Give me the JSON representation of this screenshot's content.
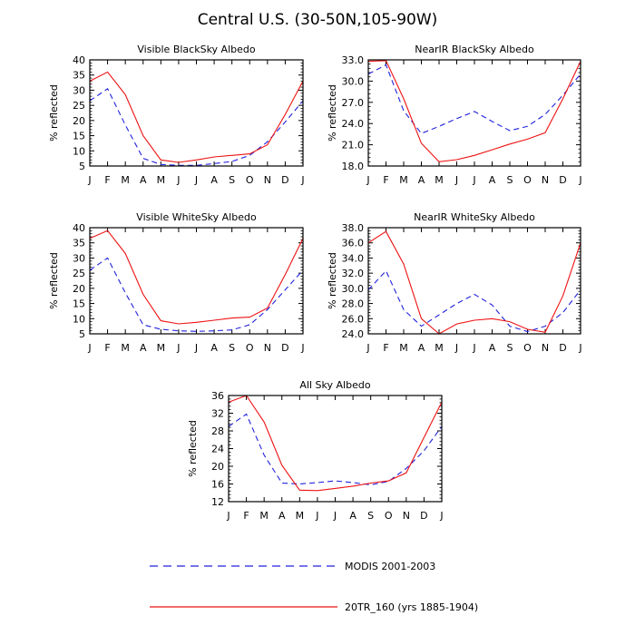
{
  "page_title": "Central U.S. (30-50N,105-90W)",
  "legend": {
    "modis_label": "MODIS 2001-2003",
    "model_label": "20TR_160 (yrs 1885-1904)",
    "modis_color": "#2222dd",
    "model_color": "#ee1111"
  },
  "months": [
    "J",
    "F",
    "M",
    "A",
    "M",
    "J",
    "J",
    "A",
    "S",
    "O",
    "N",
    "D",
    "J"
  ],
  "chart_data": [
    {
      "type": "line",
      "title": "Visible BlackSky Albedo",
      "ylabel": "% reflected",
      "ylim": [
        5,
        40
      ],
      "yticks": [
        "5",
        "10",
        "15",
        "20",
        "25",
        "30",
        "35",
        "40"
      ],
      "yvals": [
        5,
        10,
        15,
        20,
        25,
        30,
        35,
        40
      ],
      "series": [
        {
          "name": "MODIS 2001-2003",
          "values": [
            26.5,
            30.5,
            18.5,
            7.5,
            5.5,
            5.2,
            5.2,
            5.8,
            6.5,
            8.5,
            13.0,
            19.5,
            26.5
          ]
        },
        {
          "name": "20TR_160 (yrs 1885-1904)",
          "values": [
            33.0,
            36.0,
            28.5,
            15.0,
            7.0,
            6.2,
            7.0,
            8.0,
            8.5,
            9.0,
            12.0,
            22.0,
            33.0
          ]
        }
      ]
    },
    {
      "type": "line",
      "title": "NearIR BlackSky Albedo",
      "ylabel": "% reflected",
      "ylim": [
        18.0,
        33.0
      ],
      "yticks": [
        "18.0",
        "21.0",
        "24.0",
        "27.0",
        "30.0",
        "33.0"
      ],
      "yvals": [
        18,
        21,
        24,
        27,
        30,
        33
      ],
      "series": [
        {
          "name": "MODIS 2001-2003",
          "values": [
            31.0,
            32.3,
            25.8,
            22.6,
            23.6,
            24.7,
            25.7,
            24.3,
            23.0,
            23.6,
            25.3,
            28.0,
            31.0
          ]
        },
        {
          "name": "20TR_160 (yrs 1885-1904)",
          "values": [
            32.8,
            32.9,
            27.5,
            21.2,
            18.6,
            18.9,
            19.5,
            20.3,
            21.1,
            21.8,
            22.7,
            27.5,
            32.8
          ]
        }
      ]
    },
    {
      "type": "line",
      "title": "Visible WhiteSky Albedo",
      "ylabel": "% reflected",
      "ylim": [
        5,
        40
      ],
      "yticks": [
        "5",
        "10",
        "15",
        "20",
        "25",
        "30",
        "35",
        "40"
      ],
      "yvals": [
        5,
        10,
        15,
        20,
        25,
        30,
        35,
        40
      ],
      "series": [
        {
          "name": "MODIS 2001-2003",
          "values": [
            26.0,
            30.0,
            18.5,
            8.0,
            6.5,
            6.0,
            5.8,
            6.0,
            6.3,
            8.0,
            13.0,
            19.5,
            26.0
          ]
        },
        {
          "name": "20TR_160 (yrs 1885-1904)",
          "values": [
            36.5,
            39.0,
            31.5,
            18.0,
            9.3,
            8.3,
            8.8,
            9.5,
            10.2,
            10.5,
            13.5,
            24.5,
            36.5
          ]
        }
      ]
    },
    {
      "type": "line",
      "title": "NearIR WhiteSky Albedo",
      "ylabel": "% reflected",
      "ylim": [
        24.0,
        38.0
      ],
      "yticks": [
        "24.0",
        "26.0",
        "28.0",
        "30.0",
        "32.0",
        "34.0",
        "36.0",
        "38.0"
      ],
      "yvals": [
        24,
        26,
        28,
        30,
        32,
        34,
        36,
        38
      ],
      "series": [
        {
          "name": "MODIS 2001-2003",
          "values": [
            29.8,
            32.3,
            27.2,
            25.0,
            26.5,
            28.0,
            29.2,
            27.8,
            25.0,
            24.3,
            25.0,
            26.8,
            29.8
          ]
        },
        {
          "name": "20TR_160 (yrs 1885-1904)",
          "values": [
            36.0,
            37.5,
            33.2,
            26.0,
            24.0,
            25.3,
            25.8,
            26.0,
            25.6,
            24.6,
            24.2,
            29.0,
            36.0
          ]
        }
      ]
    },
    {
      "type": "line",
      "title": "All Sky Albedo",
      "ylabel": "% reflected",
      "ylim": [
        12,
        36
      ],
      "yticks": [
        "12",
        "16",
        "20",
        "24",
        "28",
        "32",
        "36"
      ],
      "yvals": [
        12,
        16,
        20,
        24,
        28,
        32,
        36
      ],
      "series": [
        {
          "name": "MODIS 2001-2003",
          "values": [
            29.0,
            31.8,
            22.5,
            16.2,
            16.0,
            16.3,
            16.7,
            16.3,
            15.8,
            16.6,
            19.5,
            23.5,
            29.0
          ]
        },
        {
          "name": "20TR_160 (yrs 1885-1904)",
          "values": [
            34.5,
            36.0,
            30.0,
            20.2,
            14.6,
            14.5,
            15.0,
            15.5,
            16.2,
            16.7,
            18.5,
            26.5,
            34.5
          ]
        }
      ]
    }
  ]
}
